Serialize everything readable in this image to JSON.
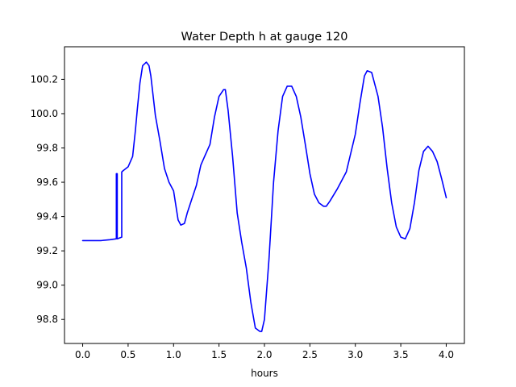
{
  "chart_data": {
    "type": "line",
    "title": "Water Depth h at gauge 120",
    "xlabel": "hours",
    "ylabel": "",
    "xlim": [
      -0.2,
      4.2
    ],
    "ylim": [
      98.66,
      100.39
    ],
    "xticks": [
      0.0,
      0.5,
      1.0,
      1.5,
      2.0,
      2.5,
      3.0,
      3.5,
      4.0
    ],
    "xtick_labels": [
      "0.0",
      "0.5",
      "1.0",
      "1.5",
      "2.0",
      "2.5",
      "3.0",
      "3.5",
      "4.0"
    ],
    "yticks": [
      98.8,
      99.0,
      99.2,
      99.4,
      99.6,
      99.8,
      100.0,
      100.2
    ],
    "ytick_labels": [
      "98.8",
      "99.0",
      "99.2",
      "99.4",
      "99.6",
      "99.8",
      "100.0",
      "100.2"
    ],
    "grid": false,
    "series": [
      {
        "color": "#0000ff",
        "x": [
          0.0,
          0.1,
          0.2,
          0.3,
          0.37,
          0.37,
          0.38,
          0.38,
          0.43,
          0.43,
          0.44,
          0.45,
          0.5,
          0.55,
          0.58,
          0.6,
          0.63,
          0.66,
          0.7,
          0.73,
          0.75,
          0.8,
          0.85,
          0.9,
          0.95,
          1.0,
          1.05,
          1.08,
          1.12,
          1.15,
          1.2,
          1.25,
          1.3,
          1.35,
          1.4,
          1.45,
          1.5,
          1.55,
          1.57,
          1.6,
          1.65,
          1.7,
          1.75,
          1.8,
          1.85,
          1.9,
          1.95,
          1.97,
          2.0,
          2.05,
          2.1,
          2.15,
          2.2,
          2.25,
          2.3,
          2.35,
          2.4,
          2.45,
          2.5,
          2.55,
          2.6,
          2.65,
          2.68,
          2.72,
          2.8,
          2.9,
          3.0,
          3.05,
          3.1,
          3.13,
          3.18,
          3.25,
          3.3,
          3.35,
          3.4,
          3.45,
          3.5,
          3.55,
          3.6,
          3.65,
          3.7,
          3.75,
          3.8,
          3.85,
          3.9,
          3.95,
          4.0
        ],
        "y": [
          99.26,
          99.26,
          99.26,
          99.265,
          99.27,
          99.65,
          99.65,
          99.27,
          99.28,
          99.66,
          99.665,
          99.67,
          99.69,
          99.75,
          99.9,
          100.02,
          100.18,
          100.28,
          100.3,
          100.28,
          100.22,
          99.99,
          99.84,
          99.68,
          99.6,
          99.55,
          99.38,
          99.35,
          99.36,
          99.42,
          99.5,
          99.58,
          99.7,
          99.76,
          99.82,
          99.98,
          100.1,
          100.14,
          100.14,
          100.02,
          99.75,
          99.42,
          99.25,
          99.1,
          98.9,
          98.75,
          98.73,
          98.73,
          98.8,
          99.15,
          99.6,
          99.9,
          100.1,
          100.16,
          100.16,
          100.1,
          99.98,
          99.82,
          99.65,
          99.53,
          99.48,
          99.46,
          99.46,
          99.49,
          99.56,
          99.66,
          99.88,
          100.06,
          100.22,
          100.25,
          100.24,
          100.1,
          99.92,
          99.68,
          99.48,
          99.34,
          99.28,
          99.27,
          99.33,
          99.48,
          99.67,
          99.78,
          99.81,
          99.78,
          99.72,
          99.62,
          99.51
        ]
      }
    ]
  }
}
